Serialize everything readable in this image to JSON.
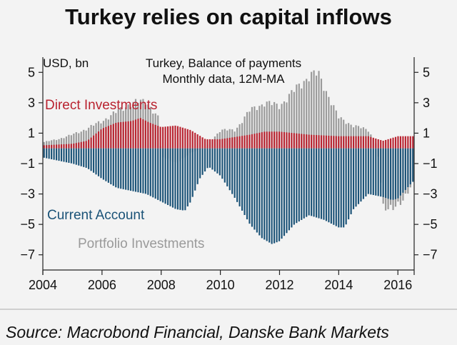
{
  "title": "Turkey relies on capital inflows",
  "source": "Source: Macrobond Financial, Danske Bank Markets",
  "chart_data": {
    "type": "bar",
    "unit_label": "USD, bn",
    "subtitle_line1": "Turkey, Balance of payments",
    "subtitle_line2": "Monthly data, 12M-MA",
    "ylim": [
      -8,
      6
    ],
    "xlim": [
      2004,
      2016.55
    ],
    "y_ticks": [
      5,
      3,
      1,
      -1,
      -3,
      -5,
      -7
    ],
    "x_ticks": [
      2004,
      2006,
      2008,
      2010,
      2012,
      2014,
      2016
    ],
    "grid": false,
    "colors": {
      "Direct Investments": "#b9222f",
      "Current Account": "#1a5277",
      "Portfolio Investments": "#9a9a9a"
    },
    "series": [
      {
        "name": "Current Account",
        "x": [
          2004,
          2004.5,
          2005,
          2005.5,
          2006,
          2006.5,
          2007,
          2007.5,
          2008,
          2008.5,
          2008.8,
          2009,
          2009.3,
          2009.6,
          2010,
          2010.5,
          2011,
          2011.4,
          2011.75,
          2012,
          2012.5,
          2013,
          2013.5,
          2014,
          2014.2,
          2014.5,
          2015,
          2015.5,
          2015.8,
          2016,
          2016.5
        ],
        "values": [
          -0.6,
          -0.8,
          -1.0,
          -1.3,
          -2.0,
          -2.6,
          -2.8,
          -3.0,
          -3.5,
          -4.0,
          -4.1,
          -3.5,
          -2.0,
          -1.2,
          -1.8,
          -3.3,
          -5.0,
          -5.9,
          -6.3,
          -6.1,
          -5.0,
          -4.4,
          -4.7,
          -5.2,
          -5.2,
          -4.0,
          -3.0,
          -3.2,
          -3.4,
          -3.3,
          -2.2
        ]
      },
      {
        "name": "Direct Investments",
        "x": [
          2004,
          2005,
          2005.5,
          2006,
          2006.5,
          2007,
          2007.3,
          2007.6,
          2008,
          2008.5,
          2009,
          2009.5,
          2010,
          2011,
          2011.5,
          2012,
          2012.5,
          2013,
          2014,
          2015,
          2015.5,
          2016,
          2016.5
        ],
        "values": [
          0.2,
          0.3,
          0.5,
          1.3,
          1.7,
          1.8,
          2.0,
          1.7,
          1.4,
          1.5,
          1.2,
          0.6,
          0.6,
          0.9,
          1.1,
          1.1,
          1.0,
          0.9,
          0.8,
          0.8,
          0.5,
          0.8,
          0.8
        ]
      },
      {
        "name": "Portfolio Investments",
        "x": [
          2004,
          2004.5,
          2005,
          2005.5,
          2006,
          2006.5,
          2007,
          2007.5,
          2007.9,
          2008,
          2008.5,
          2009,
          2009.5,
          2010,
          2010.5,
          2011,
          2011.5,
          2012,
          2012.5,
          2013,
          2013.3,
          2013.6,
          2014,
          2014.5,
          2015,
          2015.3,
          2015.5,
          2015.8,
          2016,
          2016.5
        ],
        "values": [
          0.4,
          0.6,
          0.9,
          1.3,
          1.8,
          2.4,
          3.0,
          3.1,
          2.0,
          -0.5,
          -1.0,
          -0.3,
          0.1,
          1.2,
          1.2,
          2.5,
          3.0,
          2.8,
          3.8,
          4.8,
          4.9,
          3.7,
          2.0,
          1.5,
          1.2,
          0.2,
          -3.7,
          -4.1,
          -3.8,
          -2.3
        ]
      }
    ]
  }
}
